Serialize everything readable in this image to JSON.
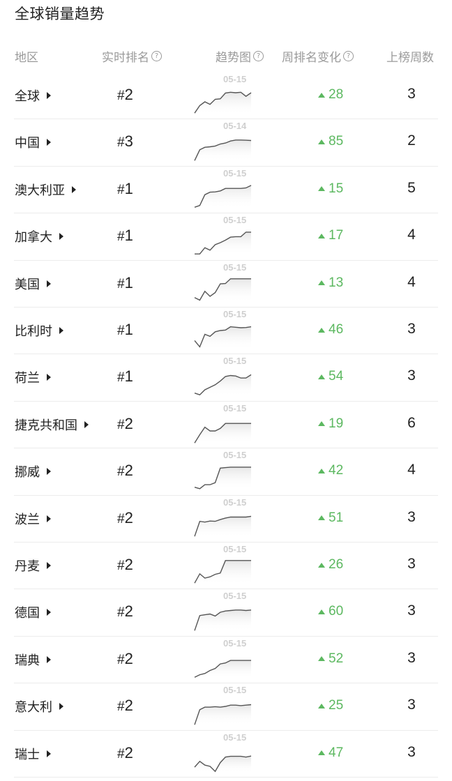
{
  "title": "全球销量趋势",
  "headers": {
    "region": "地区",
    "rank": "实时排名",
    "trend": "趋势图",
    "weekly_change": "周排名变化",
    "weeks": "上榜周数",
    "help_icon": "?"
  },
  "colors": {
    "up": "#5cb860",
    "line": "#555555",
    "fill": "#e6e6e6",
    "date": "#cfcfcf"
  },
  "rows": [
    {
      "region": "全球",
      "rank_hash": "#",
      "rank_num": "2",
      "date": "05-15",
      "change": "28",
      "weeks": "3",
      "trend": [
        0.05,
        0.35,
        0.5,
        0.4,
        0.6,
        0.62,
        0.85,
        0.88,
        0.86,
        0.88,
        0.72,
        0.86
      ]
    },
    {
      "region": "中国",
      "rank_hash": "#",
      "rank_num": "3",
      "date": "05-14",
      "change": "85",
      "weeks": "2",
      "trend": [
        0.02,
        0.45,
        0.55,
        0.57,
        0.6,
        0.68,
        0.72,
        0.8,
        0.84,
        0.84,
        0.83,
        0.82
      ]
    },
    {
      "region": "澳大利亚",
      "rank_hash": "#",
      "rank_num": "1",
      "date": "05-15",
      "change": "15",
      "weeks": "5",
      "trend": [
        0.05,
        0.12,
        0.55,
        0.65,
        0.66,
        0.7,
        0.8,
        0.8,
        0.8,
        0.8,
        0.82,
        0.92
      ]
    },
    {
      "region": "加拿大",
      "rank_hash": "#",
      "rank_num": "1",
      "date": "05-15",
      "change": "17",
      "weeks": "4",
      "trend": [
        0.05,
        0.05,
        0.3,
        0.2,
        0.42,
        0.5,
        0.6,
        0.72,
        0.74,
        0.74,
        0.92,
        0.92
      ]
    },
    {
      "region": "美国",
      "rank_hash": "#",
      "rank_num": "1",
      "date": "05-15",
      "change": "13",
      "weeks": "4",
      "trend": [
        0.2,
        0.1,
        0.45,
        0.25,
        0.4,
        0.75,
        0.76,
        0.95,
        0.95,
        0.95,
        0.95,
        0.95
      ]
    },
    {
      "region": "比利时",
      "rank_hash": "#",
      "rank_num": "1",
      "date": "05-15",
      "change": "46",
      "weeks": "3",
      "trend": [
        0.35,
        0.1,
        0.6,
        0.52,
        0.7,
        0.75,
        0.77,
        0.9,
        0.88,
        0.86,
        0.87,
        0.9
      ]
    },
    {
      "region": "荷兰",
      "rank_hash": "#",
      "rank_num": "1",
      "date": "05-15",
      "change": "54",
      "weeks": "3",
      "trend": [
        0.12,
        0.05,
        0.25,
        0.35,
        0.45,
        0.6,
        0.78,
        0.82,
        0.8,
        0.72,
        0.72,
        0.85
      ]
    },
    {
      "region": "捷克共和国",
      "rank_hash": "#",
      "rank_num": "2",
      "date": "05-15",
      "change": "19",
      "weeks": "6",
      "trend": [
        0.02,
        0.35,
        0.65,
        0.5,
        0.5,
        0.6,
        0.8,
        0.8,
        0.8,
        0.8,
        0.8,
        0.8
      ]
    },
    {
      "region": "挪威",
      "rank_hash": "#",
      "rank_num": "2",
      "date": "05-15",
      "change": "42",
      "weeks": "4",
      "trend": [
        0.12,
        0.06,
        0.22,
        0.22,
        0.3,
        0.88,
        0.9,
        0.92,
        0.92,
        0.92,
        0.92,
        0.92
      ]
    },
    {
      "region": "波兰",
      "rank_hash": "#",
      "rank_num": "2",
      "date": "05-15",
      "change": "51",
      "weeks": "3",
      "trend": [
        0.05,
        0.65,
        0.62,
        0.66,
        0.65,
        0.72,
        0.78,
        0.82,
        0.82,
        0.82,
        0.82,
        0.85
      ]
    },
    {
      "region": "丹麦",
      "rank_hash": "#",
      "rank_num": "2",
      "date": "05-15",
      "change": "26",
      "weeks": "3",
      "trend": [
        0.05,
        0.42,
        0.25,
        0.3,
        0.4,
        0.45,
        0.95,
        0.95,
        0.95,
        0.95,
        0.95,
        0.95
      ]
    },
    {
      "region": "德国",
      "rank_hash": "#",
      "rank_num": "2",
      "date": "05-15",
      "change": "60",
      "weeks": "3",
      "trend": [
        0.02,
        0.62,
        0.65,
        0.68,
        0.6,
        0.75,
        0.8,
        0.82,
        0.84,
        0.84,
        0.82,
        0.84
      ]
    },
    {
      "region": "瑞典",
      "rank_hash": "#",
      "rank_num": "2",
      "date": "05-15",
      "change": "52",
      "weeks": "3",
      "trend": [
        0.05,
        0.15,
        0.2,
        0.32,
        0.4,
        0.58,
        0.62,
        0.72,
        0.72,
        0.72,
        0.72,
        0.72
      ]
    },
    {
      "region": "意大利",
      "rank_hash": "#",
      "rank_num": "2",
      "date": "05-15",
      "change": "25",
      "weeks": "3",
      "trend": [
        0.02,
        0.62,
        0.72,
        0.72,
        0.74,
        0.72,
        0.75,
        0.8,
        0.8,
        0.78,
        0.8,
        0.82
      ]
    },
    {
      "region": "瑞士",
      "rank_hash": "#",
      "rank_num": "2",
      "date": "05-15",
      "change": "47",
      "weeks": "3",
      "trend": [
        0.22,
        0.45,
        0.3,
        0.25,
        0.05,
        0.4,
        0.62,
        0.65,
        0.65,
        0.65,
        0.62,
        0.66
      ]
    }
  ]
}
